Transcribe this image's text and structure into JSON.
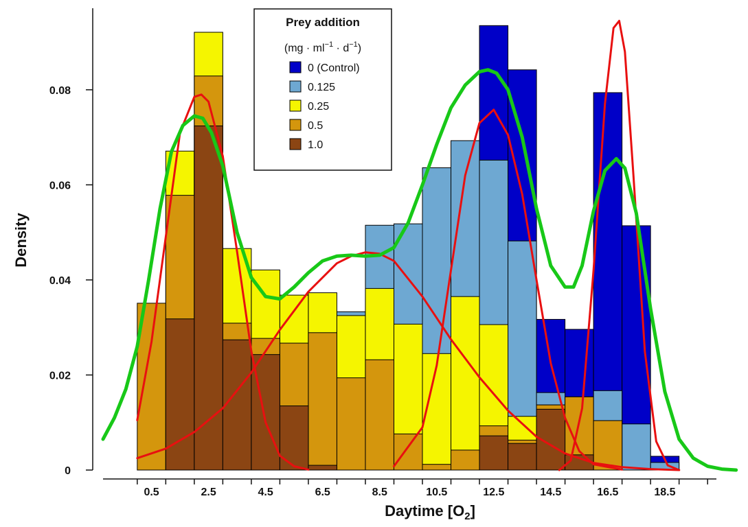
{
  "chart_data": {
    "type": "bar",
    "xlabel": "Daytime [O",
    "xlabel_sub": "2",
    "xlabel_close": "]",
    "ylabel": "Density",
    "ylim": [
      0,
      0.096
    ],
    "xlim": [
      -1.2,
      21.2
    ],
    "x_ticks": [
      {
        "value": 0.5,
        "label": "0.5"
      },
      {
        "value": 2.5,
        "label": "2.5"
      },
      {
        "value": 4.5,
        "label": "4.5"
      },
      {
        "value": 6.5,
        "label": "6.5"
      },
      {
        "value": 8.5,
        "label": "8.5"
      },
      {
        "value": 10.5,
        "label": "10.5"
      },
      {
        "value": 12.5,
        "label": "12.5"
      },
      {
        "value": 14.5,
        "label": "14.5"
      },
      {
        "value": 16.5,
        "label": "16.5"
      },
      {
        "value": 18.5,
        "label": "18.5"
      }
    ],
    "y_ticks": [
      {
        "value": 0,
        "label": "0"
      },
      {
        "value": 0.02,
        "label": "0.02"
      },
      {
        "value": 0.04,
        "label": "0.04"
      },
      {
        "value": 0.06,
        "label": "0.06"
      },
      {
        "value": 0.08,
        "label": "0.08"
      }
    ],
    "bin_width": 1.0,
    "bins_start": [
      0.0,
      1.0,
      2.0,
      3.0,
      4.0,
      5.0,
      6.0,
      7.0,
      8.0,
      9.0,
      10.0,
      11.0,
      12.0,
      13.0,
      14.0,
      15.0,
      16.0,
      17.0,
      18.0
    ],
    "series": [
      {
        "name": "0 (Control)",
        "color": "#0000c8",
        "values": [
          0,
          0,
          0,
          0,
          0,
          0,
          0,
          0,
          0,
          0,
          0,
          0,
          0.0935,
          0.0842,
          0.0317,
          0.0296,
          0.0794,
          0.0514,
          0.0029
        ]
      },
      {
        "name": "0.125",
        "color": "#6ea8d2",
        "values": [
          0,
          0,
          0,
          0,
          0,
          0,
          0,
          0.0333,
          0.0515,
          0.0518,
          0.0636,
          0.0693,
          0.0652,
          0.0482,
          0.0163,
          0.0154,
          0.0167,
          0.0097,
          0.0016
        ]
      },
      {
        "name": "0.25",
        "color": "#f5f500",
        "values": [
          0,
          0.0671,
          0.0921,
          0.0466,
          0.0421,
          0.0368,
          0.0373,
          0.0325,
          0.0382,
          0.0307,
          0.0245,
          0.0365,
          0.0306,
          0.0113,
          0.0137,
          0.0045,
          0.0104,
          0,
          0
        ]
      },
      {
        "name": "0.5",
        "color": "#d4960d",
        "values": [
          0.0351,
          0.0578,
          0.0829,
          0.0309,
          0.0277,
          0.0267,
          0.0289,
          0.0194,
          0.0232,
          0.0076,
          0.0012,
          0.0042,
          0.0093,
          0.0063,
          0.0137,
          0.0154,
          0.0104,
          0,
          0
        ]
      },
      {
        "name": "1.0",
        "color": "#8b4513",
        "values": [
          0,
          0.0318,
          0.0724,
          0.0274,
          0.0243,
          0.0135,
          0.001,
          0,
          0,
          0,
          0,
          0,
          0.0072,
          0.0056,
          0.0128,
          0.0032,
          0,
          0,
          0
        ]
      }
    ],
    "density_curves": [
      {
        "name": "component-1",
        "color": "#e81010",
        "x": [
          0.0,
          0.5,
          1.0,
          1.5,
          2.0,
          2.25,
          2.5,
          3.0,
          3.5,
          4.0,
          4.5,
          5.0,
          5.5,
          6.0
        ],
        "y": [
          0.0105,
          0.027,
          0.049,
          0.071,
          0.0785,
          0.079,
          0.0775,
          0.066,
          0.046,
          0.025,
          0.01,
          0.003,
          0.0008,
          0.0001
        ]
      },
      {
        "name": "component-2",
        "color": "#e81010",
        "x": [
          0.0,
          1.0,
          2.0,
          3.0,
          4.0,
          5.0,
          6.0,
          7.0,
          7.5,
          8.0,
          8.5,
          9.0,
          10.0,
          11.0,
          12.0,
          13.0,
          14.0,
          15.0,
          16.0,
          17.0,
          18.0,
          19.0
        ],
        "y": [
          0.0025,
          0.0045,
          0.008,
          0.013,
          0.0205,
          0.0295,
          0.0375,
          0.0435,
          0.045,
          0.0458,
          0.0455,
          0.044,
          0.0365,
          0.0275,
          0.0195,
          0.0125,
          0.007,
          0.0035,
          0.0015,
          0.0006,
          0.0002,
          0.0
        ]
      },
      {
        "name": "component-3",
        "color": "#e81010",
        "x": [
          9.0,
          10.0,
          10.5,
          11.0,
          11.5,
          12.0,
          12.5,
          13.0,
          13.5,
          14.0,
          14.5,
          15.0,
          15.5,
          16.0,
          17.0
        ],
        "y": [
          0.0008,
          0.009,
          0.022,
          0.042,
          0.062,
          0.073,
          0.0758,
          0.0705,
          0.058,
          0.04,
          0.0225,
          0.011,
          0.004,
          0.0012,
          0.0001
        ]
      },
      {
        "name": "component-4",
        "color": "#e81010",
        "x": [
          14.8,
          15.2,
          15.6,
          16.0,
          16.4,
          16.7,
          16.9,
          17.1,
          17.4,
          17.8,
          18.2,
          18.6,
          19.0
        ],
        "y": [
          0.0,
          0.002,
          0.013,
          0.042,
          0.077,
          0.093,
          0.0945,
          0.088,
          0.062,
          0.025,
          0.006,
          0.001,
          0.0
        ]
      },
      {
        "name": "mixture",
        "color": "#18c818",
        "x": [
          -1.2,
          -0.8,
          -0.4,
          0.0,
          0.4,
          0.8,
          1.2,
          1.6,
          2.0,
          2.3,
          2.6,
          3.0,
          3.5,
          4.0,
          4.5,
          5.0,
          5.5,
          6.0,
          6.5,
          7.0,
          7.5,
          8.0,
          8.5,
          9.0,
          9.5,
          10.0,
          10.5,
          11.0,
          11.5,
          12.0,
          12.3,
          12.6,
          13.0,
          13.5,
          14.0,
          14.5,
          15.0,
          15.3,
          15.6,
          16.0,
          16.4,
          16.8,
          17.1,
          17.5,
          18.0,
          18.5,
          19.0,
          19.5,
          20.0,
          20.5,
          21.0
        ],
        "y": [
          0.0065,
          0.011,
          0.017,
          0.026,
          0.04,
          0.055,
          0.067,
          0.0725,
          0.0745,
          0.074,
          0.071,
          0.064,
          0.05,
          0.0405,
          0.0365,
          0.036,
          0.0385,
          0.0415,
          0.044,
          0.045,
          0.0452,
          0.045,
          0.0452,
          0.0468,
          0.052,
          0.06,
          0.0685,
          0.0762,
          0.081,
          0.0838,
          0.0842,
          0.0835,
          0.08,
          0.07,
          0.055,
          0.043,
          0.0385,
          0.0385,
          0.043,
          0.0545,
          0.063,
          0.0655,
          0.0635,
          0.054,
          0.034,
          0.0165,
          0.0065,
          0.0025,
          0.0008,
          0.0002,
          0.0
        ]
      }
    ],
    "legend": {
      "title": "Prey addition",
      "units_prefix": "(mg",
      "units_ml": "ml",
      "units_ml_exp": "−1",
      "units_d": "d",
      "units_d_exp": "−1",
      "units_close": ")",
      "position": "top-center"
    }
  }
}
